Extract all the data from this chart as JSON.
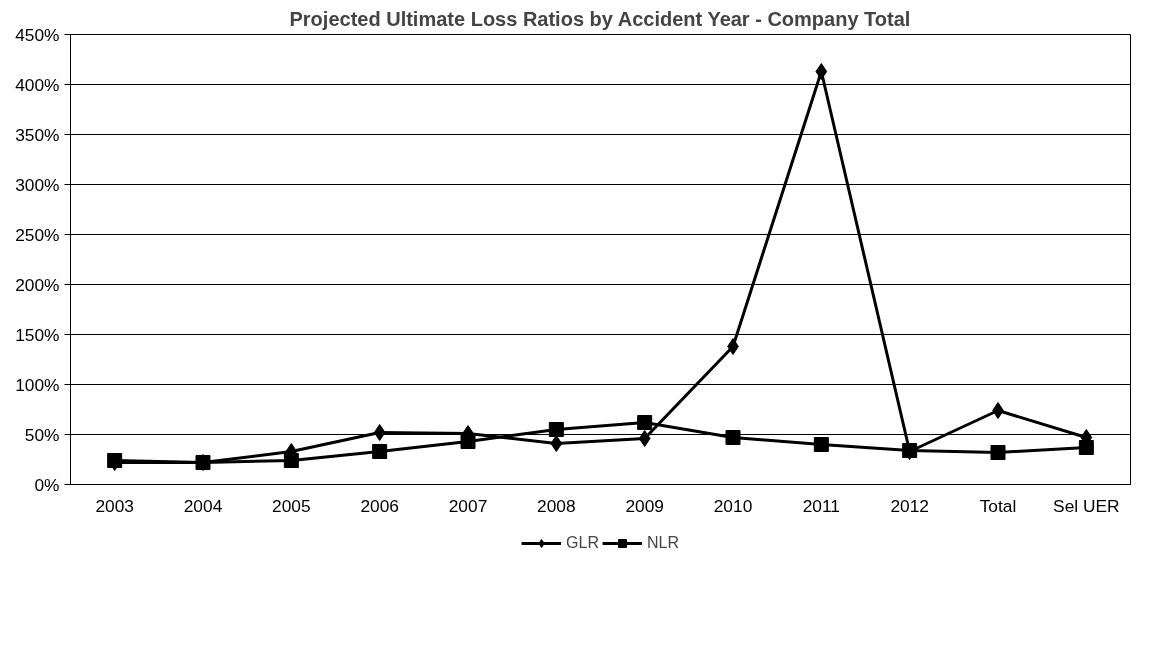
{
  "chart_data": {
    "type": "line",
    "title": "Projected Ultimate Loss Ratios by Accident Year - Company Total",
    "categories": [
      "2003",
      "2004",
      "2005",
      "2006",
      "2007",
      "2008",
      "2009",
      "2010",
      "2011",
      "2012",
      "Total",
      "Sel UER"
    ],
    "series": [
      {
        "name": "GLR",
        "color": "#000000",
        "marker": "diamond",
        "values": [
          22,
          22,
          33,
          52,
          51,
          41,
          46,
          138,
          413,
          33,
          74,
          47
        ]
      },
      {
        "name": "NLR",
        "color": "#000000",
        "marker": "square",
        "values": [
          24,
          22,
          24,
          33,
          43,
          55,
          62,
          47,
          40,
          34,
          32,
          37
        ]
      }
    ],
    "ylim": [
      0,
      450
    ],
    "yticks": [
      {
        "value": 0,
        "label": "0%"
      },
      {
        "value": 50,
        "label": "50%"
      },
      {
        "value": 100,
        "label": "100%"
      },
      {
        "value": 150,
        "label": "150%"
      },
      {
        "value": 200,
        "label": "200%"
      },
      {
        "value": 250,
        "label": "250%"
      },
      {
        "value": 300,
        "label": "300%"
      },
      {
        "value": 350,
        "label": "350%"
      },
      {
        "value": 400,
        "label": "400%"
      },
      {
        "value": 450,
        "label": "450%"
      }
    ],
    "grid": "y",
    "legend": "bottom",
    "line_style": "solid"
  }
}
